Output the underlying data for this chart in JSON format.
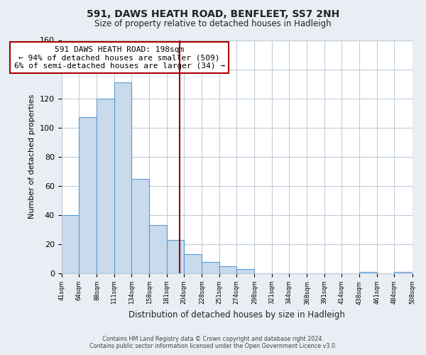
{
  "title": "591, DAWS HEATH ROAD, BENFLEET, SS7 2NH",
  "subtitle": "Size of property relative to detached houses in Hadleigh",
  "xlabel": "Distribution of detached houses by size in Hadleigh",
  "ylabel": "Number of detached properties",
  "footer_line1": "Contains HM Land Registry data © Crown copyright and database right 2024.",
  "footer_line2": "Contains public sector information licensed under the Open Government Licence v3.0.",
  "bin_edges": [
    41,
    64,
    88,
    111,
    134,
    158,
    181,
    204,
    228,
    251,
    274,
    298,
    321,
    344,
    368,
    391,
    414,
    438,
    461,
    484,
    508
  ],
  "bar_heights": [
    40,
    107,
    120,
    131,
    65,
    33,
    23,
    13,
    8,
    5,
    3,
    0,
    0,
    0,
    0,
    0,
    0,
    1,
    0,
    1
  ],
  "bar_color": "#c8daec",
  "bar_edgecolor": "#5b9bd5",
  "vline_x": 198,
  "vline_color": "#990000",
  "annotation_title": "591 DAWS HEATH ROAD: 198sqm",
  "annotation_line1": "← 94% of detached houses are smaller (509)",
  "annotation_line2": "6% of semi-detached houses are larger (34) →",
  "annotation_box_facecolor": "#ffffff",
  "annotation_box_edgecolor": "#aa0000",
  "ylim": [
    0,
    160
  ],
  "tick_labels": [
    "41sqm",
    "64sqm",
    "88sqm",
    "111sqm",
    "134sqm",
    "158sqm",
    "181sqm",
    "204sqm",
    "228sqm",
    "251sqm",
    "274sqm",
    "298sqm",
    "321sqm",
    "344sqm",
    "368sqm",
    "391sqm",
    "414sqm",
    "438sqm",
    "461sqm",
    "484sqm",
    "508sqm"
  ],
  "bg_color": "#e8eef4",
  "plot_bg_color": "#ffffff",
  "grid_color": "#c0ccd8"
}
